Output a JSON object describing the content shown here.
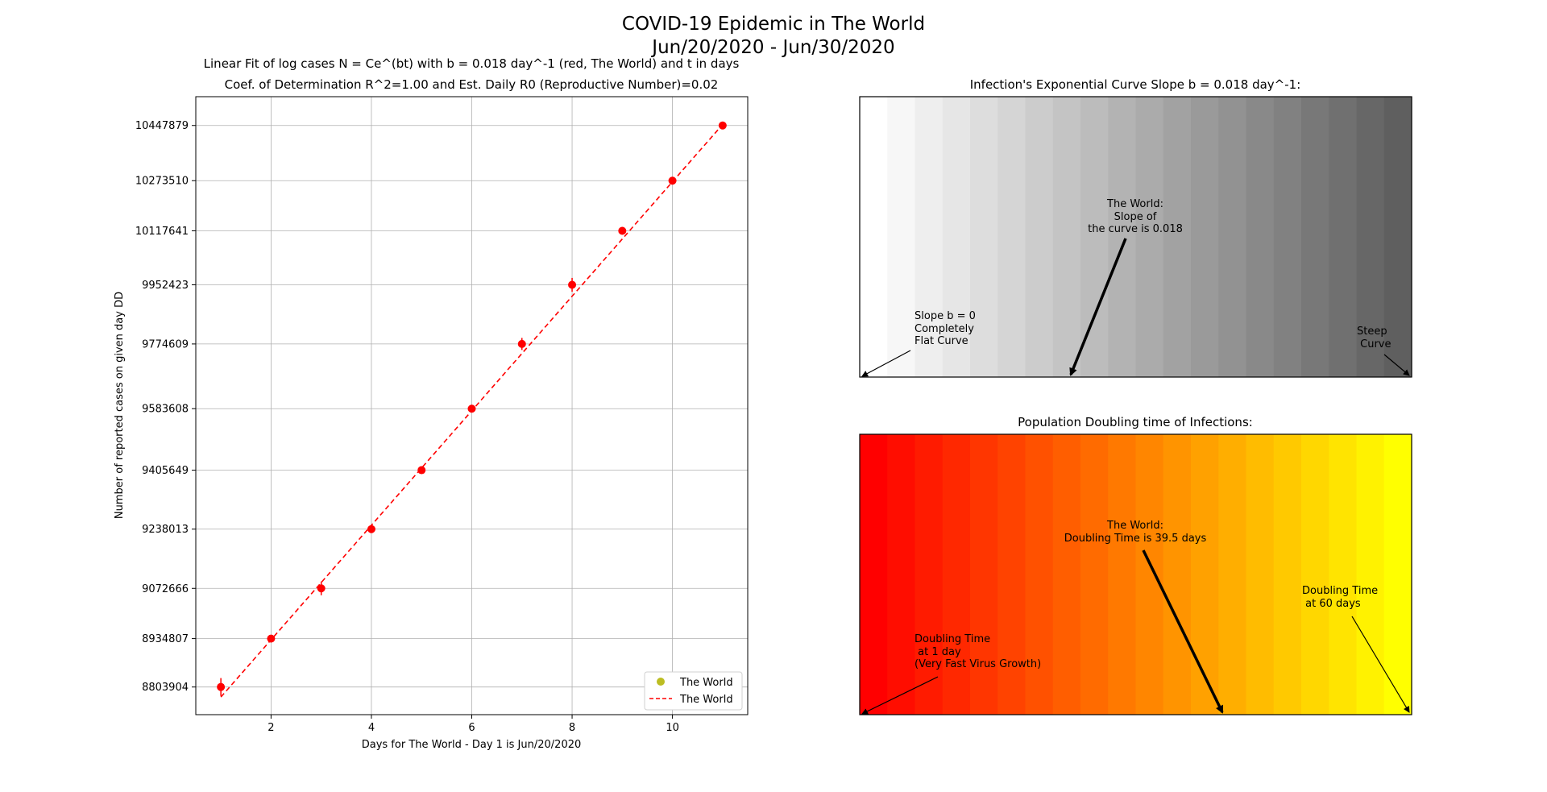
{
  "figure": {
    "title_line1": "COVID-19 Epidemic in The World",
    "title_line2": "Jun/20/2020 - Jun/30/2020"
  },
  "chart_data": [
    {
      "type": "scatter",
      "title_line1": "Linear Fit of log cases N = Ce^(bt) with b = 0.018 day^-1 (red, The World) and t in days",
      "title_line2": "Coef. of Determination R^2=1.00 and Est. Daily R0 (Reproductive Number)=0.02",
      "xlabel": "Days for The World - Day 1 is Jun/20/2020",
      "ylabel": "Number of reported cases on given day DD",
      "x_ticks": [
        2,
        4,
        6,
        8,
        10
      ],
      "xlim": [
        0.5,
        11.5
      ],
      "y_scale": "log",
      "y_ticks": [
        8803904,
        8934807,
        9072666,
        9238013,
        9405649,
        9583608,
        9774609,
        9952423,
        10117641,
        10273510,
        10447879
      ],
      "ylim": [
        8730000,
        10540000
      ],
      "grid": true,
      "legend_position": "bottom-right",
      "series": [
        {
          "name": "The World",
          "kind": "points",
          "color": "#bcbd22",
          "x": [
            1,
            2,
            3,
            4,
            5,
            6,
            7,
            8,
            9,
            10,
            11
          ],
          "y": [
            8803904,
            8934807,
            9072666,
            9238013,
            9405649,
            9583608,
            9774609,
            9952423,
            10117641,
            10273510,
            10447879
          ],
          "errors": [
            24000,
            5000,
            19000,
            9000,
            9000,
            9000,
            18000,
            21000,
            10000,
            8000,
            12000
          ]
        },
        {
          "name": "The World",
          "kind": "fit-line",
          "style": "dashed",
          "color": "#ff0000",
          "x": [
            1,
            11
          ],
          "y": [
            8777000,
            10451000
          ]
        }
      ],
      "point_color": "#ff0000"
    },
    {
      "type": "heatmap",
      "title": "Infection's Exponential Curve Slope b = 0.018 day^-1:",
      "colormap": "greys",
      "bands": 20,
      "annotations": [
        {
          "text": "The World:\nSlope of\nthe curve is 0.018",
          "arrow": "bold"
        },
        {
          "text": "Slope b = 0\nCompletely\nFlat Curve",
          "arrow": "thin"
        },
        {
          "text": "Steep\n Curve",
          "arrow": "thin"
        }
      ]
    },
    {
      "type": "heatmap",
      "title": "Population Doubling time of Infections:",
      "colormap": "autumn",
      "bands": 20,
      "annotations": [
        {
          "text": "The World:\nDoubling Time is 39.5 days",
          "arrow": "bold"
        },
        {
          "text": "Doubling Time\n at 1 day\n(Very Fast Virus Growth)",
          "arrow": "thin"
        },
        {
          "text": "Doubling Time\n at 60 days",
          "arrow": "thin"
        }
      ]
    }
  ]
}
